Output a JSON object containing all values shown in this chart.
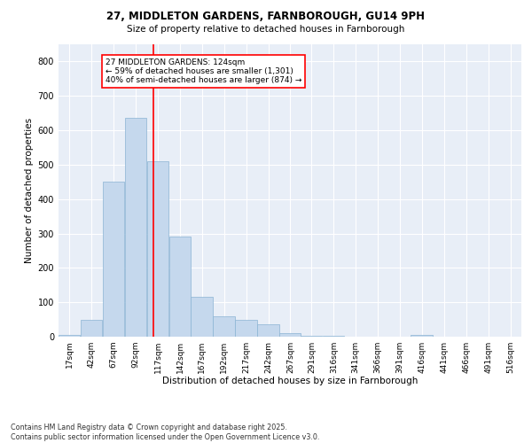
{
  "title_line1": "27, MIDDLETON GARDENS, FARNBOROUGH, GU14 9PH",
  "title_line2": "Size of property relative to detached houses in Farnborough",
  "xlabel": "Distribution of detached houses by size in Farnborough",
  "ylabel": "Number of detached properties",
  "bar_color": "#c5d8ed",
  "bar_edge_color": "#8ab4d4",
  "background_color": "#e8eef7",
  "grid_color": "#ffffff",
  "red_line_x": 124,
  "annotation_text": "27 MIDDLETON GARDENS: 124sqm\n← 59% of detached houses are smaller (1,301)\n40% of semi-detached houses are larger (874) →",
  "categories": [
    "17sqm",
    "42sqm",
    "67sqm",
    "92sqm",
    "117sqm",
    "142sqm",
    "167sqm",
    "192sqm",
    "217sqm",
    "242sqm",
    "267sqm",
    "291sqm",
    "316sqm",
    "341sqm",
    "366sqm",
    "391sqm",
    "416sqm",
    "441sqm",
    "466sqm",
    "491sqm",
    "516sqm"
  ],
  "bin_starts": [
    17,
    42,
    67,
    92,
    117,
    142,
    167,
    192,
    217,
    242,
    267,
    291,
    316,
    341,
    366,
    391,
    416,
    441,
    466,
    491,
    516
  ],
  "bin_width": 25,
  "values": [
    5,
    50,
    450,
    635,
    510,
    290,
    115,
    60,
    50,
    35,
    10,
    3,
    2,
    1,
    0,
    0,
    5,
    0,
    0,
    0,
    0
  ],
  "ylim": [
    0,
    850
  ],
  "yticks": [
    0,
    100,
    200,
    300,
    400,
    500,
    600,
    700,
    800
  ],
  "footnote": "Contains HM Land Registry data © Crown copyright and database right 2025.\nContains public sector information licensed under the Open Government Licence v3.0."
}
